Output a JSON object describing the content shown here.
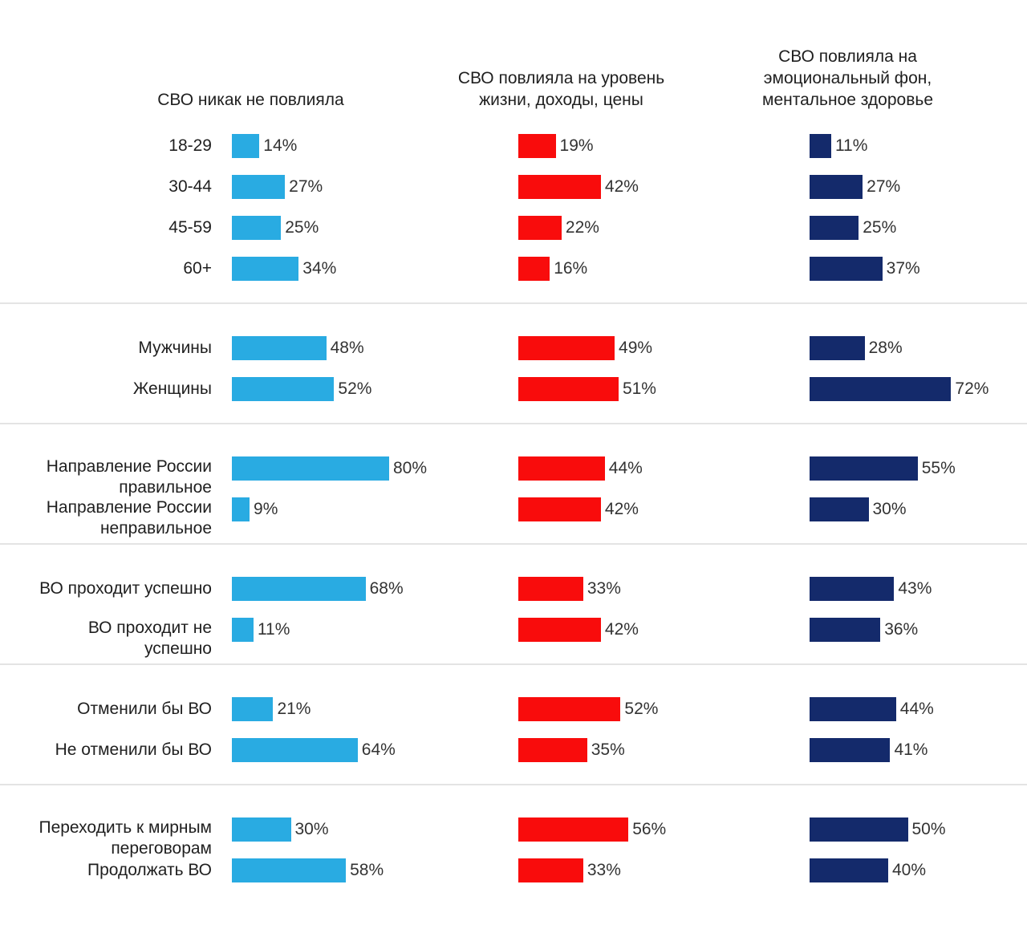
{
  "chart_data": {
    "type": "bar",
    "orientation": "horizontal",
    "value_suffix": "%",
    "value_range": [
      0,
      100
    ],
    "grid": false,
    "data_labels": true,
    "columns": [
      {
        "title": "СВО никак не повлияла",
        "color": "#29ABE2"
      },
      {
        "title": "СВО повлияла на уровень\nжизни, доходы, цены",
        "color": "#F90C0C"
      },
      {
        "title": "СВО повлияла на\nэмоциональный фон,\nментальное здоровье",
        "color": "#142A6B"
      }
    ],
    "groups": [
      {
        "rows": [
          {
            "label": "18-29",
            "values": [
              14,
              19,
              11
            ]
          },
          {
            "label": "30-44",
            "values": [
              27,
              42,
              27
            ]
          },
          {
            "label": "45-59",
            "values": [
              25,
              22,
              25
            ]
          },
          {
            "label": "60+",
            "values": [
              34,
              16,
              37
            ]
          }
        ]
      },
      {
        "rows": [
          {
            "label": "Мужчины",
            "values": [
              48,
              49,
              28
            ]
          },
          {
            "label": "Женщины",
            "values": [
              52,
              51,
              72
            ]
          }
        ]
      },
      {
        "rows": [
          {
            "label": "Направление России\nправильное",
            "values": [
              80,
              44,
              55
            ]
          },
          {
            "label": "Направление России\nнеправильное",
            "values": [
              9,
              42,
              30
            ]
          }
        ]
      },
      {
        "rows": [
          {
            "label": "ВО проходит успешно",
            "values": [
              68,
              33,
              43
            ]
          },
          {
            "label": "ВО проходит не\nуспешно",
            "values": [
              11,
              42,
              36
            ]
          }
        ]
      },
      {
        "rows": [
          {
            "label": "Отменили бы ВО",
            "values": [
              21,
              52,
              44
            ]
          },
          {
            "label": "Не отменили бы ВО",
            "values": [
              64,
              35,
              41
            ]
          }
        ]
      },
      {
        "rows": [
          {
            "label": "Переходить к мирным\nпереговорам",
            "values": [
              30,
              56,
              50
            ]
          },
          {
            "label": "Продолжать ВО",
            "values": [
              58,
              33,
              40
            ]
          }
        ]
      }
    ]
  }
}
